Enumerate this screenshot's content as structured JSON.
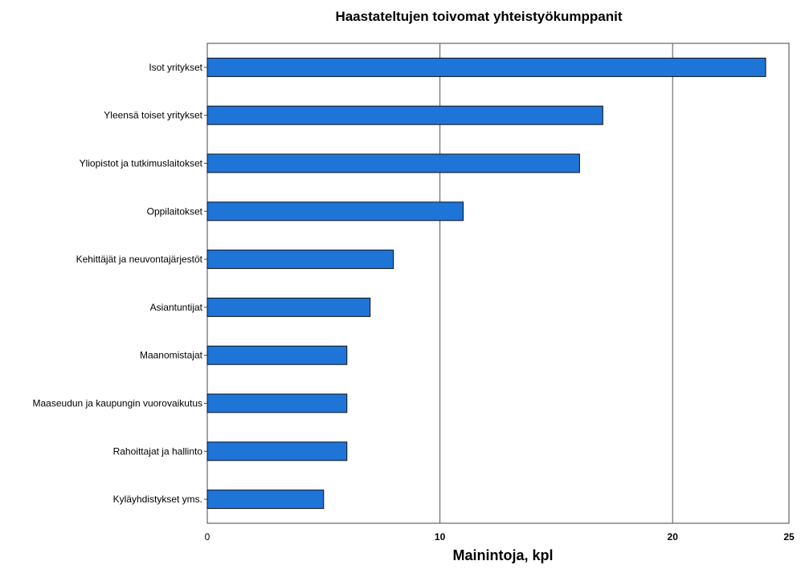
{
  "chart_data": {
    "type": "bar",
    "orientation": "horizontal",
    "title": "Haastateltujen toivomat yhteistyökumppanit",
    "xlabel": "Mainintoja, kpl",
    "ylabel": "",
    "xlim": [
      0,
      25
    ],
    "x_ticks": [
      "0",
      "10",
      "20",
      "25"
    ],
    "grid": true,
    "categories": [
      "Isot yritykset",
      "Yleensä toiset yritykset",
      "Yliopistot ja tutkimuslaitokset",
      "Oppilaitokset",
      "Kehittäjät ja neuvontajärjestöt",
      "Asiantuntijat",
      "Maanomistajat",
      "Maaseudun ja kaupungin vuorovaikutus",
      "Rahoittajat ja hallinto",
      "Kyläyhdistykset yms."
    ],
    "values": [
      24,
      17,
      16,
      11,
      8,
      7,
      6,
      6,
      6,
      5
    ],
    "bar_color": "#1f74d8"
  }
}
